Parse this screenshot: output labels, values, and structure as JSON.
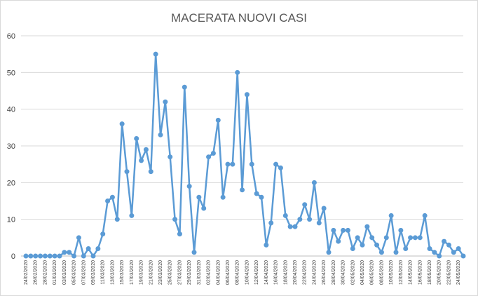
{
  "chart_data": {
    "type": "line",
    "title": "MACERATA NUOVI CASI",
    "xlabel": "",
    "ylabel": "",
    "ylim": [
      0,
      60
    ],
    "yticks": [
      0,
      10,
      20,
      30,
      40,
      50,
      60
    ],
    "grid": true,
    "legend": "none",
    "x": [
      "24/02/2020",
      "25/02/2020",
      "26/02/2020",
      "27/02/2020",
      "28/02/2020",
      "29/02/2020",
      "01/03/2020",
      "02/03/2020",
      "03/03/2020",
      "04/03/2020",
      "05/03/2020",
      "06/03/2020",
      "07/03/2020",
      "08/03/2020",
      "09/03/2020",
      "10/03/2020",
      "11/03/2020",
      "12/03/2020",
      "13/03/2020",
      "14/03/2020",
      "15/03/2020",
      "16/03/2020",
      "17/03/2020",
      "18/03/2020",
      "19/03/2020",
      "20/03/2020",
      "21/03/2020",
      "22/03/2020",
      "23/03/2020",
      "24/03/2020",
      "25/03/2020",
      "26/03/2020",
      "27/03/2020",
      "28/03/2020",
      "29/03/2020",
      "30/03/2020",
      "31/03/2020",
      "01/04/2020",
      "02/04/2020",
      "03/04/2020",
      "04/04/2020",
      "05/04/2020",
      "06/04/2020",
      "07/04/2020",
      "08/04/2020",
      "09/04/2020",
      "10/04/2020",
      "11/04/2020",
      "12/04/2020",
      "13/04/2020",
      "14/04/2020",
      "15/04/2020",
      "16/04/2020",
      "17/04/2020",
      "18/04/2020",
      "19/04/2020",
      "20/04/2020",
      "21/04/2020",
      "22/04/2020",
      "23/04/2020",
      "24/04/2020",
      "25/04/2020",
      "26/04/2020",
      "27/04/2020",
      "28/04/2020",
      "29/04/2020",
      "30/04/2020",
      "01/05/2020",
      "02/05/2020",
      "03/05/2020",
      "04/05/2020",
      "05/05/2020",
      "06/05/2020",
      "07/05/2020",
      "08/05/2020",
      "09/05/2020",
      "10/05/2020",
      "11/05/2020",
      "12/05/2020",
      "13/05/2020",
      "14/05/2020",
      "15/05/2020",
      "16/05/2020",
      "17/05/2020",
      "18/05/2020",
      "19/05/2020",
      "20/05/2020",
      "21/05/2020",
      "22/05/2020",
      "23/05/2020",
      "24/05/2020",
      "25/05/2020"
    ],
    "series": [
      {
        "values": [
          0,
          0,
          0,
          0,
          0,
          0,
          0,
          0,
          1,
          1,
          0,
          5,
          0,
          2,
          0,
          2,
          6,
          15,
          16,
          10,
          36,
          23,
          11,
          32,
          26,
          29,
          23,
          55,
          33,
          42,
          27,
          10,
          6,
          46,
          19,
          1,
          16,
          13,
          27,
          28,
          37,
          16,
          25,
          25,
          50,
          18,
          44,
          25,
          17,
          16,
          3,
          9,
          25,
          24,
          11,
          8,
          8,
          10,
          14,
          10,
          20,
          9,
          13,
          1,
          7,
          4,
          7,
          7,
          2,
          5,
          3,
          8,
          5,
          3,
          1,
          5,
          11,
          1,
          7,
          2,
          5,
          5,
          5,
          11,
          2,
          1,
          0,
          4,
          3,
          1,
          2,
          0
        ]
      }
    ],
    "colors": {
      "series": "#5b9bd5",
      "grid": "#d9d9d9"
    }
  }
}
